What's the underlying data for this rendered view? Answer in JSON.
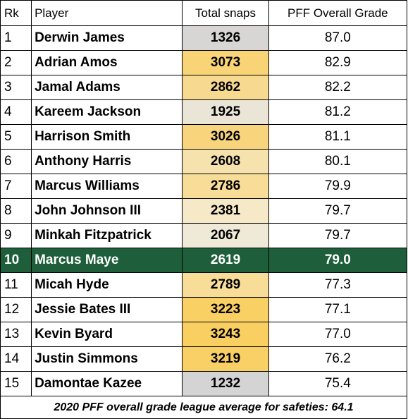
{
  "chart_data": {
    "type": "table",
    "columns": [
      "Rk",
      "Player",
      "Total snaps",
      "PFF Overall Grade"
    ],
    "rows": [
      {
        "rk": "1",
        "player": "Derwin James",
        "snaps": 1326,
        "grade": "87.0"
      },
      {
        "rk": "2",
        "player": "Adrian Amos",
        "snaps": 3073,
        "grade": "82.9"
      },
      {
        "rk": "3",
        "player": "Jamal Adams",
        "snaps": 2862,
        "grade": "82.2"
      },
      {
        "rk": "4",
        "player": "Kareem Jackson",
        "snaps": 1925,
        "grade": "81.2"
      },
      {
        "rk": "5",
        "player": "Harrison Smith",
        "snaps": 3026,
        "grade": "81.1"
      },
      {
        "rk": "6",
        "player": "Anthony Harris",
        "snaps": 2608,
        "grade": "80.1"
      },
      {
        "rk": "7",
        "player": "Marcus Williams",
        "snaps": 2786,
        "grade": "79.9"
      },
      {
        "rk": "8",
        "player": "John Johnson III",
        "snaps": 2381,
        "grade": "79.7"
      },
      {
        "rk": "9",
        "player": "Minkah Fitzpatrick",
        "snaps": 2067,
        "grade": "79.7"
      },
      {
        "rk": "10",
        "player": "Marcus Maye",
        "snaps": 2619,
        "grade": "79.0",
        "highlighted": true
      },
      {
        "rk": "11",
        "player": "Micah Hyde",
        "snaps": 2789,
        "grade": "77.3"
      },
      {
        "rk": "12",
        "player": "Jessie Bates III",
        "snaps": 3223,
        "grade": "77.1"
      },
      {
        "rk": "13",
        "player": "Kevin Byard",
        "snaps": 3243,
        "grade": "77.0"
      },
      {
        "rk": "14",
        "player": "Justin Simmons",
        "snaps": 3219,
        "grade": "76.2"
      },
      {
        "rk": "15",
        "player": "Damontae Kazee",
        "snaps": 1232,
        "grade": "75.4"
      }
    ],
    "footnote": "2020 PFF overall grade league average for safeties: 64.1",
    "colors": {
      "highlight_row": "#1e5e3b",
      "snaps_low": "#d4d4d4",
      "snaps_mid": "#f5edd9",
      "snaps_high": "#f9cf62"
    }
  }
}
